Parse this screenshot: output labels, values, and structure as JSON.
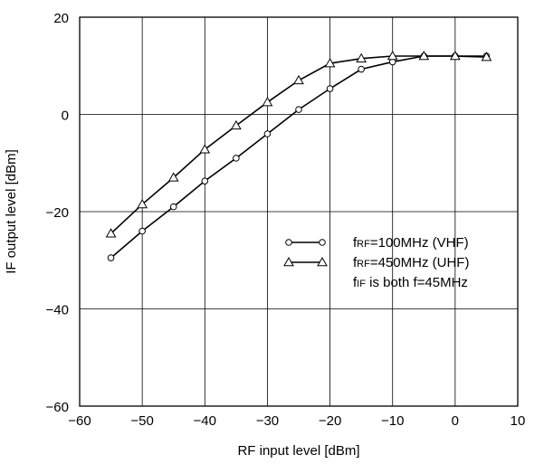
{
  "chart_data": {
    "type": "line",
    "title": "",
    "xlabel": "RF input level [dBm]",
    "ylabel": "IF output level [dBm]",
    "xlim": [
      -60,
      10
    ],
    "ylim": [
      -60,
      20
    ],
    "x_ticks": [
      -60,
      -50,
      -40,
      -30,
      -20,
      -10,
      0,
      10
    ],
    "y_ticks": [
      -60,
      -40,
      -20,
      0,
      20
    ],
    "x_tick_labels": [
      "−60",
      "−50",
      "−40",
      "−30",
      "−20",
      "−10",
      "0",
      "10"
    ],
    "y_tick_labels": [
      "−60",
      "−40",
      "−20",
      "0",
      "20"
    ],
    "grid": true,
    "legend_position": "right-middle",
    "series": [
      {
        "legend_f": "f",
        "legend_sub": "RF",
        "legend_rest": "=100MHz (VHF)",
        "marker": "circle",
        "x": [
          -55,
          -50,
          -45,
          -40,
          -35,
          -30,
          -25,
          -20,
          -15,
          -10,
          -5,
          0,
          5
        ],
        "y": [
          -29.5,
          -24,
          -19,
          -13.7,
          -9,
          -4,
          1,
          5.3,
          9.3,
          10.8,
          12,
          12,
          12
        ]
      },
      {
        "legend_f": "f",
        "legend_sub": "RF",
        "legend_rest": "=450MHz (UHF)",
        "marker": "triangle",
        "x": [
          -55,
          -50,
          -45,
          -40,
          -35,
          -30,
          -25,
          -20,
          -15,
          -10,
          -5,
          0,
          5
        ],
        "y": [
          -24.5,
          -18.5,
          -13,
          -7.2,
          -2.3,
          2.5,
          7,
          10.5,
          11.5,
          12,
          12,
          12,
          11.8
        ]
      }
    ],
    "note": {
      "f": "f",
      "sub": "IF",
      "rest": " is both f=45MHz"
    }
  }
}
